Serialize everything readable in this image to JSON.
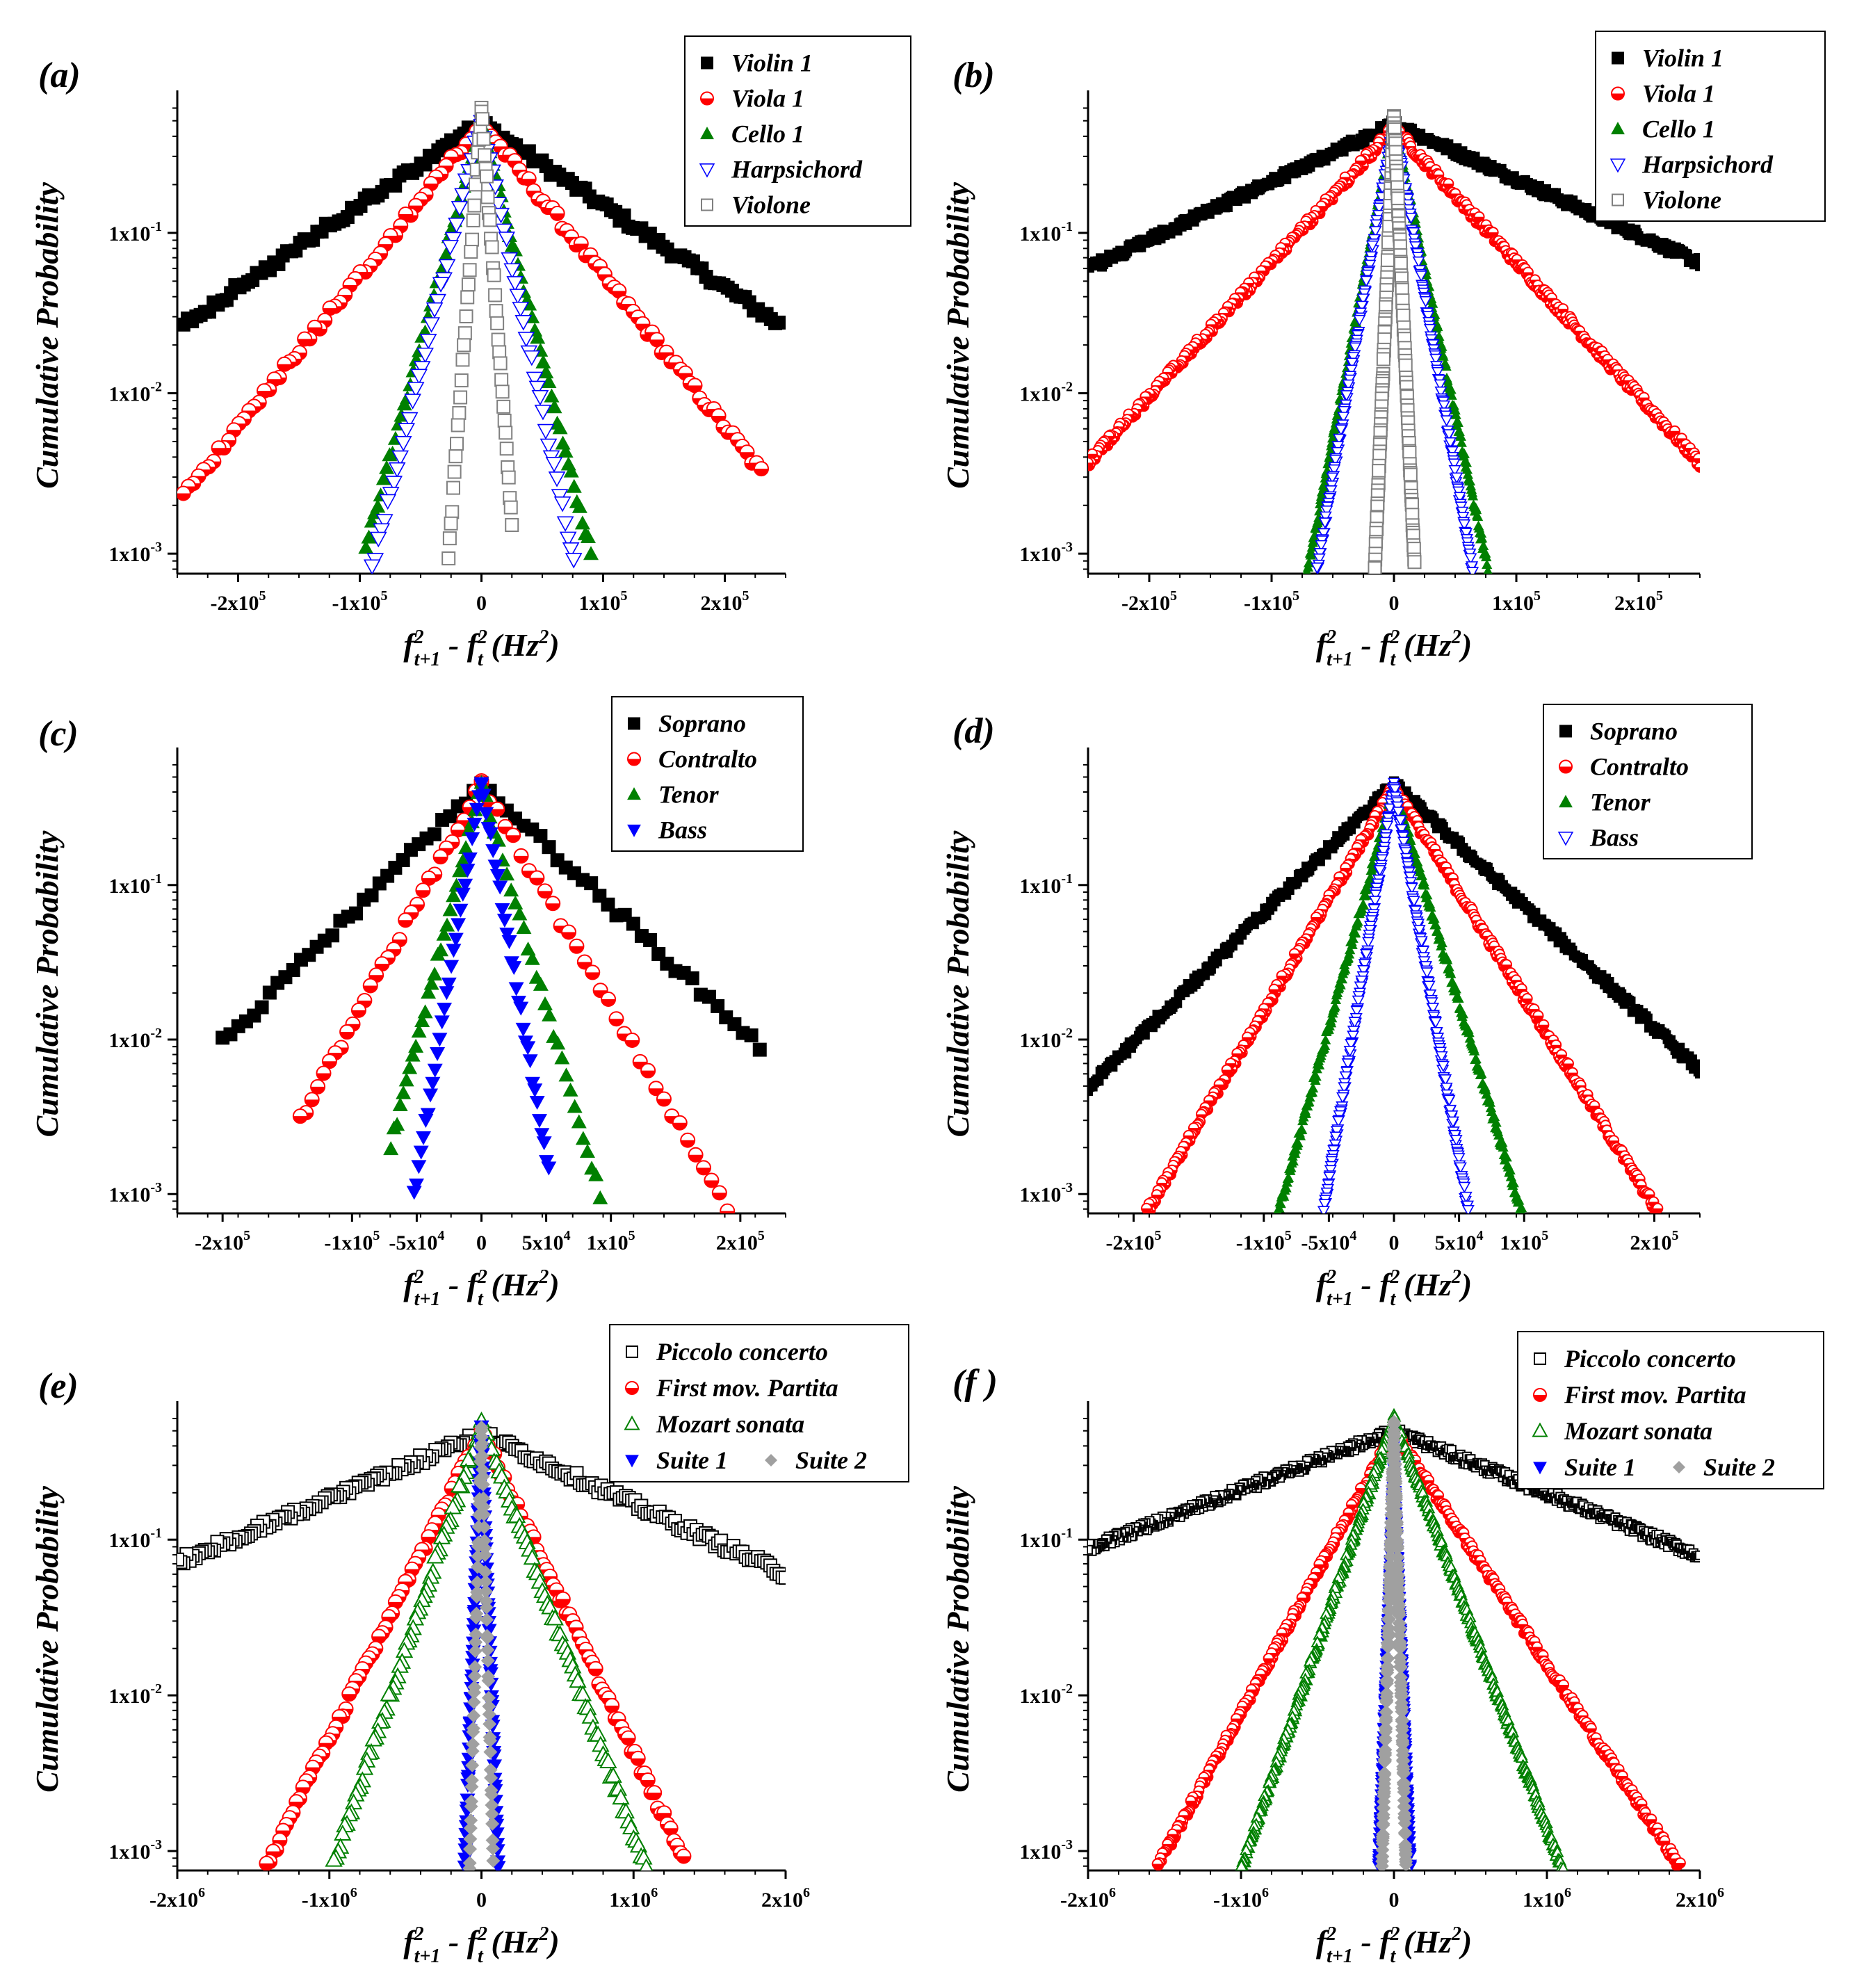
{
  "chart_data": [
    {
      "type": "scatter",
      "panel_label": "(a)",
      "xlabel": "f²ₜ₊₁ - f²ₜ (Hz²)",
      "ylabel": "Cumulative Probability",
      "yscale": "log",
      "xlim": [
        -250000,
        250000
      ],
      "ylim": [
        0.00075,
        0.7
      ],
      "xticks": [
        -200000,
        -100000,
        0,
        100000,
        200000
      ],
      "xtick_labels": [
        "-2x10⁵",
        "-1x10⁵",
        "0",
        "1x10⁵",
        "2x10⁵"
      ],
      "yticks": [
        0.001,
        0.01,
        0.1
      ],
      "ytick_labels": [
        "1x10⁻³",
        "1x10⁻²",
        "1x10⁻¹"
      ],
      "legend_position": "top-right",
      "series": [
        {
          "name": "Violin 1",
          "marker": "square-filled",
          "color": "#000000",
          "peak": 0.48,
          "left_scale": 85000,
          "right_scale": 85000,
          "x_min": -245000,
          "x_max": 245000,
          "n": 70
        },
        {
          "name": "Viola 1",
          "marker": "circle-half",
          "color": "#ff0000",
          "peak": 0.48,
          "left_scale": 46000,
          "right_scale": 46000,
          "x_min": -245000,
          "x_max": 230000,
          "n": 60
        },
        {
          "name": "Cello 1",
          "marker": "triangle-up-filled",
          "color": "#008000",
          "peak": 0.5,
          "left_scale": 15500,
          "right_scale": 14500,
          "x_min": -95000,
          "x_max": 90000,
          "n": 40
        },
        {
          "name": "Harpsichord",
          "marker": "triangle-down-open",
          "color": "#0000ff",
          "peak": 0.5,
          "left_scale": 14000,
          "right_scale": 12000,
          "x_min": -95000,
          "x_max": 85000,
          "n": 38
        },
        {
          "name": "Violone",
          "marker": "square-open",
          "color": "#808080",
          "peak": 0.6,
          "left_scale": 4200,
          "right_scale": 4200,
          "x_min": -28000,
          "x_max": 25000,
          "n": 30
        }
      ]
    },
    {
      "type": "scatter",
      "panel_label": "(b)",
      "xlabel": "f²ₜ₊₁ - f²ₜ (Hz²)",
      "ylabel": "Cumulative Probability",
      "yscale": "log",
      "xlim": [
        -250000,
        250000
      ],
      "ylim": [
        0.00075,
        0.7
      ],
      "xticks": [
        -200000,
        -100000,
        0,
        100000,
        200000
      ],
      "xtick_labels": [
        "-2x10⁵",
        "-1x10⁵",
        "0",
        "1x10⁵",
        "2x10⁵"
      ],
      "yticks": [
        0.001,
        0.01,
        0.1
      ],
      "ytick_labels": [
        "1x10⁻³",
        "1x10⁻²",
        "1x10⁻¹"
      ],
      "legend_position": "top-right",
      "series": [
        {
          "name": "Violin 1",
          "marker": "square-filled",
          "color": "#000000",
          "peak": 0.48,
          "left_scale": 120000,
          "right_scale": 125000,
          "x_min": -250000,
          "x_max": 250000,
          "n": 220
        },
        {
          "name": "Viola 1",
          "marker": "circle-half",
          "color": "#ff0000",
          "peak": 0.45,
          "left_scale": 52000,
          "right_scale": 52000,
          "x_min": -250000,
          "x_max": 250000,
          "n": 220
        },
        {
          "name": "Cello 1",
          "marker": "triangle-up-filled",
          "color": "#008000",
          "peak": 0.48,
          "left_scale": 11000,
          "right_scale": 12000,
          "x_min": -75000,
          "x_max": 80000,
          "n": 140
        },
        {
          "name": "Harpsichord",
          "marker": "triangle-down-open",
          "color": "#0000ff",
          "peak": 0.48,
          "left_scale": 9800,
          "right_scale": 10000,
          "x_min": -70000,
          "x_max": 72000,
          "n": 140
        },
        {
          "name": "Violone",
          "marker": "square-open",
          "color": "#808080",
          "peak": 0.55,
          "left_scale": 2400,
          "right_scale": 2600,
          "x_min": -17000,
          "x_max": 18000,
          "n": 90
        }
      ]
    },
    {
      "type": "scatter",
      "panel_label": "(c)",
      "xlabel": "f²ₜ₊₁ - f²ₜ (Hz²)",
      "ylabel": "Cumulative Probability",
      "yscale": "log",
      "xlim": [
        -235000,
        235000
      ],
      "ylim": [
        0.00075,
        0.7
      ],
      "xticks": [
        -200000,
        -100000,
        -50000,
        0,
        50000,
        100000,
        200000
      ],
      "xtick_labels": [
        "-2x10⁵",
        "-1x10⁵",
        "-5x10⁴",
        "0",
        "5x10⁴",
        "1x10⁵",
        "2x10⁵"
      ],
      "yticks": [
        0.001,
        0.01,
        0.1
      ],
      "ytick_labels": [
        "1x10⁻³",
        "1x10⁻²",
        "1x10⁻¹"
      ],
      "legend_position": "top-right",
      "series": [
        {
          "name": "Soprano",
          "marker": "square-filled",
          "color": "#000000",
          "peak": 0.45,
          "left_scale": 52000,
          "right_scale": 55000,
          "x_min": -200000,
          "x_max": 215000,
          "n": 34
        },
        {
          "name": "Contralto",
          "marker": "circle-half",
          "color": "#ff0000",
          "peak": 0.45,
          "left_scale": 28000,
          "right_scale": 30000,
          "x_min": -140000,
          "x_max": 190000,
          "n": 32
        },
        {
          "name": "Tenor",
          "marker": "triangle-up-filled",
          "color": "#008000",
          "peak": 0.45,
          "left_scale": 13000,
          "right_scale": 15000,
          "x_min": -70000,
          "x_max": 95000,
          "n": 30
        },
        {
          "name": "Bass",
          "marker": "triangle-down-filled",
          "color": "#0000ff",
          "peak": 0.45,
          "left_scale": 8500,
          "right_scale": 9000,
          "x_min": -52000,
          "x_max": 52000,
          "n": 30
        }
      ]
    },
    {
      "type": "scatter",
      "panel_label": "(d)",
      "xlabel": "f²ₜ₊₁ - f²ₜ (Hz²)",
      "ylabel": "Cumulative Probability",
      "yscale": "log",
      "xlim": [
        -235000,
        235000
      ],
      "ylim": [
        0.00075,
        0.7
      ],
      "xticks": [
        -200000,
        -100000,
        -50000,
        0,
        50000,
        100000,
        200000
      ],
      "xtick_labels": [
        "-2x10⁵",
        "-1x10⁵",
        "-5x10⁴",
        "0",
        "5x10⁴",
        "1x10⁵",
        "2x10⁵"
      ],
      "yticks": [
        0.001,
        0.01,
        0.1
      ],
      "ytick_labels": [
        "1x10⁻³",
        "1x10⁻²",
        "1x10⁻¹"
      ],
      "legend_position": "top-right",
      "series": [
        {
          "name": "Soprano",
          "marker": "square-filled",
          "color": "#000000",
          "peak": 0.45,
          "left_scale": 52000,
          "right_scale": 55000,
          "x_min": -235000,
          "x_max": 235000,
          "n": 200
        },
        {
          "name": "Contralto",
          "marker": "circle-half",
          "color": "#ff0000",
          "peak": 0.43,
          "left_scale": 30000,
          "right_scale": 32000,
          "x_min": -195000,
          "x_max": 210000,
          "n": 200
        },
        {
          "name": "Tenor",
          "marker": "triangle-up-filled",
          "color": "#008000",
          "peak": 0.43,
          "left_scale": 14000,
          "right_scale": 15500,
          "x_min": -90000,
          "x_max": 100000,
          "n": 150
        },
        {
          "name": "Bass",
          "marker": "triangle-down-open",
          "color": "#0000ff",
          "peak": 0.43,
          "left_scale": 8500,
          "right_scale": 9000,
          "x_min": -60000,
          "x_max": 62000,
          "n": 150
        }
      ]
    },
    {
      "type": "scatter",
      "panel_label": "(e)",
      "xlabel": "f²ₜ₊₁ - f²ₜ (Hz²)",
      "ylabel": "Cumulative Probability",
      "yscale": "log",
      "xlim": [
        -2000000,
        2000000
      ],
      "ylim": [
        0.00075,
        0.7
      ],
      "xticks": [
        -2000000,
        -1000000,
        0,
        1000000,
        2000000
      ],
      "xtick_labels": [
        "-2x10⁶",
        "-1x10⁶",
        "0",
        "1x10⁶",
        "2x10⁶"
      ],
      "yticks": [
        0.001,
        0.01,
        0.1
      ],
      "ytick_labels": [
        "1x10⁻³",
        "1x10⁻²",
        "1x10⁻¹"
      ],
      "legend_position": "top-right",
      "series": [
        {
          "name": "Piccolo concerto",
          "marker": "square-open",
          "color": "#000000",
          "peak": 0.48,
          "left_scale": 1050000,
          "right_scale": 960000,
          "x_min": -2000000,
          "x_max": 2000000,
          "n": 100
        },
        {
          "name": "First mov. Partita",
          "marker": "circle-half",
          "color": "#ff0000",
          "peak": 0.5,
          "left_scale": 220000,
          "right_scale": 210000,
          "x_min": -1500000,
          "x_max": 1480000,
          "n": 70
        },
        {
          "name": "Mozart sonata",
          "marker": "triangle-up-open",
          "color": "#008000",
          "peak": 0.55,
          "left_scale": 150000,
          "right_scale": 165000,
          "x_min": -1000000,
          "x_max": 1150000,
          "n": 70
        },
        {
          "name": "Suite 1",
          "marker": "triangle-down-filled",
          "color": "#0000ff",
          "peak": 0.5,
          "left_scale": 17000,
          "right_scale": 17000,
          "x_min": -115000,
          "x_max": 125000,
          "n": 60
        },
        {
          "name": "Suite 2",
          "marker": "diamond-filled",
          "color": "#a0a0a0",
          "peak": 0.55,
          "left_scale": 12000,
          "right_scale": 12000,
          "x_min": -90000,
          "x_max": 90000,
          "n": 50
        }
      ]
    },
    {
      "type": "scatter",
      "panel_label": "(f )",
      "xlabel": "f²ₜ₊₁ - f²ₜ (Hz²)",
      "ylabel": "Cumulative Probability",
      "yscale": "log",
      "xlim": [
        -2000000,
        2000000
      ],
      "ylim": [
        0.00075,
        0.7
      ],
      "xticks": [
        -2000000,
        -1000000,
        0,
        1000000,
        2000000
      ],
      "xtick_labels": [
        "-2x10⁶",
        "-1x10⁶",
        "0",
        "1x10⁶",
        "2x10⁶"
      ],
      "yticks": [
        0.001,
        0.01,
        0.1
      ],
      "ytick_labels": [
        "1x10⁻³",
        "1x10⁻²",
        "1x10⁻¹"
      ],
      "legend_position": "top-right",
      "series": [
        {
          "name": "Piccolo concerto",
          "marker": "square-open",
          "color": "#000000",
          "peak": 0.5,
          "left_scale": 1150000,
          "right_scale": 1080000,
          "x_min": -2000000,
          "x_max": 2000000,
          "n": 240
        },
        {
          "name": "First mov. Partita",
          "marker": "circle-half",
          "color": "#ff0000",
          "peak": 0.5,
          "left_scale": 240000,
          "right_scale": 290000,
          "x_min": -1580000,
          "x_max": 1880000,
          "n": 240
        },
        {
          "name": "Mozart sonata",
          "marker": "triangle-up-open",
          "color": "#008000",
          "peak": 0.6,
          "left_scale": 150000,
          "right_scale": 165000,
          "x_min": -1050000,
          "x_max": 1130000,
          "n": 240
        },
        {
          "name": "Suite 1",
          "marker": "triangle-down-filled",
          "color": "#0000ff",
          "peak": 0.5,
          "left_scale": 17000,
          "right_scale": 18000,
          "x_min": -110000,
          "x_max": 120000,
          "n": 150
        },
        {
          "name": "Suite 2",
          "marker": "diamond-filled",
          "color": "#a0a0a0",
          "peak": 0.55,
          "left_scale": 12000,
          "right_scale": 12000,
          "x_min": -80000,
          "x_max": 80000,
          "n": 120
        }
      ]
    }
  ]
}
